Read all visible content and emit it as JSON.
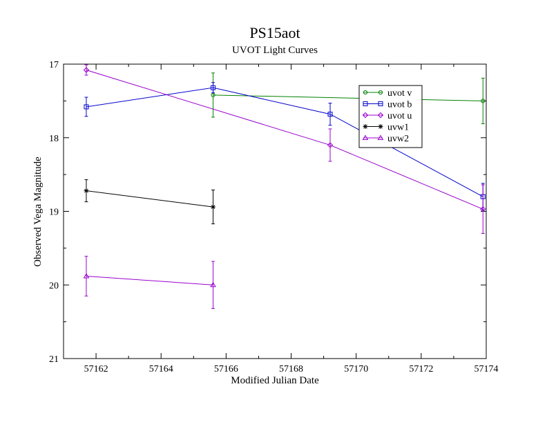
{
  "chart_data": {
    "type": "line",
    "title": "PS15aot",
    "subtitle": "UVOT Light Curves",
    "xlabel": "Modified Julian Date",
    "ylabel": "Observed Vega Magnitude",
    "xlim": [
      57161,
      57174
    ],
    "ylim": [
      17,
      21
    ],
    "y_inverted": true,
    "x_ticks": [
      57162,
      57164,
      57166,
      57168,
      57170,
      57172,
      57174
    ],
    "y_ticks": [
      17,
      18,
      19,
      20,
      21
    ],
    "grid": false,
    "legend_position": "top-right",
    "series": [
      {
        "name": "uvot v",
        "color": "#008000",
        "marker": "circle",
        "points": [
          {
            "x": 57165.6,
            "y": 17.42,
            "err": 0.3
          },
          {
            "x": 57173.9,
            "y": 17.5,
            "err": 0.31
          }
        ]
      },
      {
        "name": "uvot b",
        "color": "#0000cc",
        "marker": "square",
        "points": [
          {
            "x": 57161.7,
            "y": 17.58,
            "err": 0.13
          },
          {
            "x": 57165.6,
            "y": 17.32,
            "err": 0.07
          },
          {
            "x": 57169.2,
            "y": 17.68,
            "err": 0.15
          },
          {
            "x": 57173.9,
            "y": 18.8,
            "err": 0.18
          }
        ]
      },
      {
        "name": "uvot u",
        "color": "#9900cc",
        "marker": "diamond",
        "points": [
          {
            "x": 57161.7,
            "y": 17.08,
            "err": 0.07
          },
          {
            "x": 57169.2,
            "y": 18.1,
            "err": 0.22
          },
          {
            "x": 57173.9,
            "y": 18.97,
            "err": 0.33
          }
        ]
      },
      {
        "name": "uvw1",
        "color": "#000000",
        "marker": "star",
        "points": [
          {
            "x": 57161.7,
            "y": 18.72,
            "err": 0.15
          },
          {
            "x": 57165.6,
            "y": 18.94,
            "err": 0.23
          }
        ]
      },
      {
        "name": "uvw2",
        "color": "#9900cc",
        "marker": "triangle",
        "points": [
          {
            "x": 57161.7,
            "y": 19.88,
            "err": 0.27
          },
          {
            "x": 57165.6,
            "y": 20.0,
            "err": 0.32
          }
        ]
      }
    ]
  }
}
